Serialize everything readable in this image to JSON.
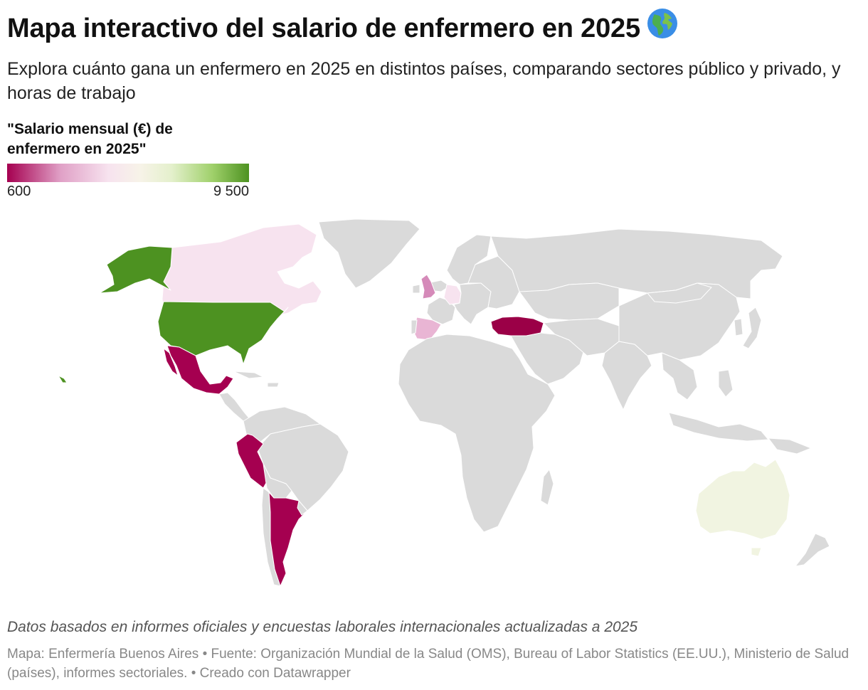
{
  "header": {
    "title": "Mapa interactivo del salario de enfermero en 2025",
    "title_emoji": "globe-icon",
    "subtitle": "Explora cuánto gana un enfermero en 2025 en distintos países, comparando sectores público y privado, y horas de trabajo"
  },
  "legend": {
    "title": "\"Salario mensual (€) de enfermero en 2025\"",
    "min_label": "600",
    "max_label": "9 500",
    "min_value": 600,
    "max_value": 9500,
    "colors": [
      "#a50050",
      "#e0a0c6",
      "#f7e3ef",
      "#f7f3e8",
      "#e4f0cc",
      "#9fd06a",
      "#4d9221"
    ]
  },
  "map": {
    "no_data_color": "#dadada",
    "border_color": "#ffffff",
    "highlighted_countries": [
      {
        "name": "Estados Unidos",
        "color": "#4d9221"
      },
      {
        "name": "Canadá",
        "color": "#f7e3ef"
      },
      {
        "name": "México",
        "color": "#a50050"
      },
      {
        "name": "Perú",
        "color": "#a50050"
      },
      {
        "name": "Argentina",
        "color": "#a50050"
      },
      {
        "name": "España",
        "color": "#e9b5d4"
      },
      {
        "name": "Reino Unido",
        "color": "#d58ab9"
      },
      {
        "name": "Alemania",
        "color": "#f7e3ef"
      },
      {
        "name": "Turquía",
        "color": "#9b0047"
      },
      {
        "name": "Australia",
        "color": "#f1f4e1"
      }
    ]
  },
  "footer": {
    "notes": "Datos basados en informes oficiales y encuestas laborales internacionales actualizadas a 2025",
    "source": "Mapa: Enfermería Buenos Aires • Fuente: Organización Mundial de la Salud (OMS), Bureau of Labor Statistics (EE.UU.), Ministerio de Salud (países), informes sectoriales. • Creado con Datawrapper"
  }
}
